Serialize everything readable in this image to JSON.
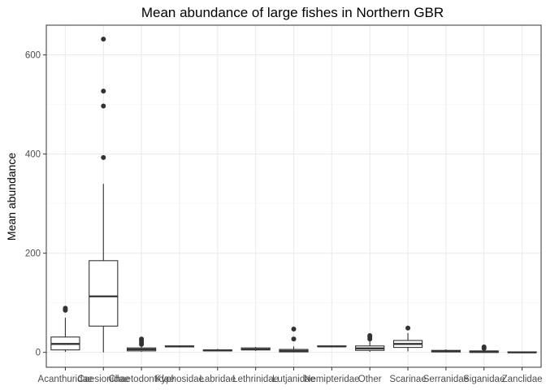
{
  "chart_data": {
    "type": "box",
    "title": "Mean abundance of large fishes in Northern GBR",
    "xlabel": "",
    "ylabel": "Mean abundance",
    "ylim": [
      -30,
      660
    ],
    "yticks": [
      0,
      200,
      400,
      600
    ],
    "grid": true,
    "legend": "none",
    "categories": [
      "Acanthuridae",
      "Caesionidae",
      "Chaetodontidae",
      "Kyphosidae",
      "Labridae",
      "Lethrinidae",
      "Lutjanidae",
      "Nemipteridae",
      "Other",
      "Scarinae",
      "Serranidae",
      "Siganidae",
      "Zanclidae"
    ],
    "boxes": [
      {
        "min": 1,
        "q1": 5,
        "median": 17,
        "q3": 31,
        "max": 70,
        "outliers": [
          85,
          89
        ]
      },
      {
        "min": 0,
        "q1": 53,
        "median": 113,
        "q3": 185,
        "max": 340,
        "outliers": [
          393,
          497,
          527,
          632
        ]
      },
      {
        "min": 1,
        "q1": 3,
        "median": 6,
        "q3": 9,
        "max": 13,
        "outliers": [
          16,
          20,
          24,
          27
        ]
      },
      {
        "min": 10,
        "q1": 11,
        "median": 12,
        "q3": 13,
        "max": 14,
        "outliers": []
      },
      {
        "min": 2,
        "q1": 3,
        "median": 4,
        "q3": 5,
        "max": 7,
        "outliers": []
      },
      {
        "min": 3,
        "q1": 5,
        "median": 6,
        "q3": 9,
        "max": 11,
        "outliers": []
      },
      {
        "min": 0,
        "q1": 1,
        "median": 3,
        "q3": 6,
        "max": 12,
        "outliers": [
          27,
          47
        ]
      },
      {
        "min": 11,
        "q1": 12,
        "median": 12,
        "q3": 13,
        "max": 14,
        "outliers": []
      },
      {
        "min": 1,
        "q1": 4,
        "median": 8,
        "q3": 13,
        "max": 24,
        "outliers": [
          27,
          31,
          34
        ]
      },
      {
        "min": 2,
        "q1": 10,
        "median": 17,
        "q3": 24,
        "max": 39,
        "outliers": [
          49
        ]
      },
      {
        "min": 0,
        "q1": 1,
        "median": 2,
        "q3": 4,
        "max": 6,
        "outliers": []
      },
      {
        "min": 0,
        "q1": 0,
        "median": 1,
        "q3": 3,
        "max": 5,
        "outliers": [
          8,
          11
        ]
      },
      {
        "min": 0,
        "q1": 0,
        "median": 0,
        "q3": 1,
        "max": 2,
        "outliers": []
      }
    ]
  },
  "style": {
    "panel_border": "#333333",
    "grid_major": "#ebebeb",
    "grid_minor": "#f5f5f5",
    "box_stroke": "#333333",
    "box_fill": "#ffffff",
    "outlier": "#333333",
    "tick": "#333333"
  }
}
